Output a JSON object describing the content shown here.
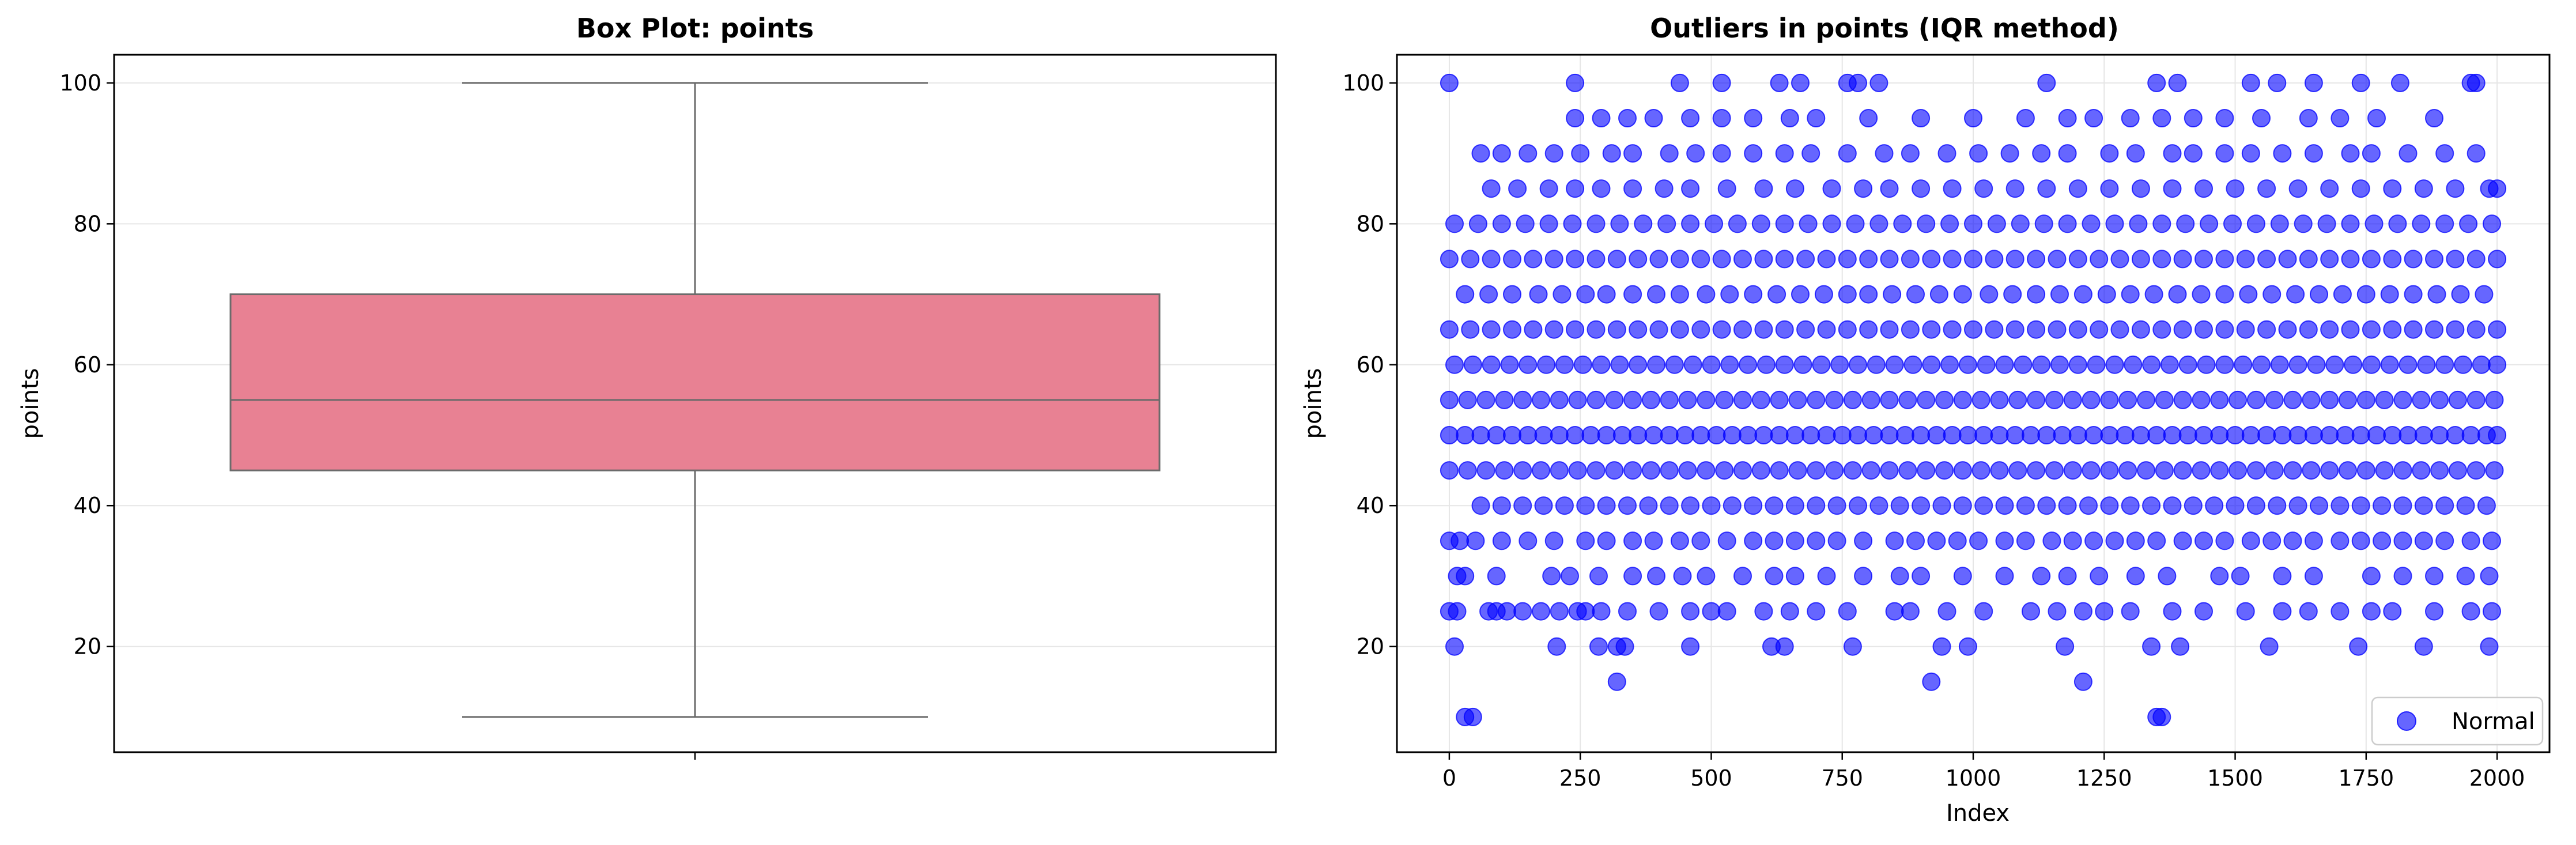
{
  "chart_data": [
    {
      "type": "box",
      "title": "Box Plot: points",
      "ylabel": "points",
      "xlabel": "",
      "ylim": [
        5,
        104
      ],
      "yticks": [
        20,
        40,
        60,
        80,
        100
      ],
      "grid": true,
      "box": {
        "min": 10,
        "q1": 45,
        "median": 55,
        "q3": 70,
        "max": 100
      },
      "colors": {
        "box_fill": "#e88193",
        "line": "#6b6b6b"
      }
    },
    {
      "type": "scatter",
      "title": "Outliers in points (IQR method)",
      "xlabel": "Index",
      "ylabel": "points",
      "xlim": [
        -100,
        2100
      ],
      "ylim": [
        5,
        104
      ],
      "xticks": [
        0,
        250,
        500,
        750,
        1000,
        1250,
        1500,
        1750,
        2000
      ],
      "yticks": [
        20,
        40,
        60,
        80,
        100
      ],
      "grid": true,
      "legend": {
        "placement": "lower-right",
        "entries": [
          "Normal"
        ]
      },
      "series": [
        {
          "name": "Normal",
          "color": "#0000ff",
          "levels": [
            10,
            15,
            20,
            25,
            30,
            35,
            40,
            45,
            50,
            55,
            60,
            65,
            70,
            75,
            80,
            85,
            90,
            95,
            100
          ],
          "points_x": [
            [
              30,
              45,
              1350,
              1360
            ],
            [
              320,
              920,
              1210
            ],
            [
              10,
              205,
              285,
              320,
              335,
              460,
              615,
              640,
              770,
              940,
              990,
              1175,
              1340,
              1395,
              1565,
              1735,
              1860,
              1985
            ],
            [
              0,
              15,
              75,
              90,
              110,
              140,
              175,
              210,
              245,
              260,
              290,
              340,
              400,
              460,
              500,
              530,
              600,
              650,
              700,
              760,
              850,
              880,
              950,
              1020,
              1110,
              1160,
              1210,
              1250,
              1300,
              1380,
              1440,
              1520,
              1590,
              1640,
              1700,
              1760,
              1800,
              1880,
              1950,
              1990
            ],
            [
              15,
              30,
              90,
              195,
              230,
              285,
              350,
              395,
              445,
              490,
              560,
              620,
              660,
              720,
              790,
              860,
              900,
              980,
              1060,
              1130,
              1180,
              1240,
              1310,
              1370,
              1470,
              1510,
              1590,
              1650,
              1760,
              1820,
              1880,
              1940,
              1985
            ],
            [
              0,
              20,
              50,
              100,
              150,
              200,
              260,
              300,
              350,
              390,
              440,
              480,
              530,
              580,
              620,
              660,
              700,
              740,
              790,
              850,
              890,
              930,
              970,
              1010,
              1060,
              1100,
              1150,
              1190,
              1230,
              1270,
              1310,
              1350,
              1400,
              1440,
              1480,
              1530,
              1570,
              1610,
              1650,
              1700,
              1740,
              1780,
              1820,
              1860,
              1900,
              1950,
              1990
            ],
            [
              60,
              100,
              140,
              180,
              220,
              260,
              300,
              340,
              380,
              420,
              460,
              500,
              540,
              580,
              620,
              660,
              700,
              740,
              780,
              820,
              860,
              900,
              940,
              980,
              1020,
              1060,
              1100,
              1140,
              1180,
              1220,
              1260,
              1300,
              1340,
              1380,
              1420,
              1460,
              1500,
              1540,
              1580,
              1620,
              1660,
              1700,
              1740,
              1780,
              1820,
              1860,
              1900,
              1940,
              1980
            ],
            [
              0,
              35,
              70,
              105,
              140,
              175,
              210,
              245,
              280,
              315,
              350,
              385,
              420,
              455,
              490,
              525,
              560,
              595,
              630,
              665,
              700,
              735,
              770,
              805,
              840,
              875,
              910,
              945,
              980,
              1015,
              1050,
              1085,
              1120,
              1155,
              1190,
              1225,
              1260,
              1295,
              1330,
              1365,
              1400,
              1435,
              1470,
              1505,
              1540,
              1575,
              1610,
              1645,
              1680,
              1715,
              1750,
              1785,
              1820,
              1855,
              1890,
              1925,
              1960,
              1995
            ],
            [
              0,
              30,
              60,
              90,
              120,
              150,
              180,
              210,
              240,
              270,
              300,
              330,
              360,
              390,
              420,
              450,
              480,
              510,
              540,
              570,
              600,
              630,
              660,
              690,
              720,
              750,
              780,
              810,
              840,
              870,
              900,
              930,
              960,
              990,
              1020,
              1050,
              1080,
              1110,
              1140,
              1170,
              1200,
              1230,
              1260,
              1290,
              1320,
              1350,
              1380,
              1410,
              1440,
              1470,
              1500,
              1530,
              1560,
              1590,
              1620,
              1650,
              1680,
              1710,
              1740,
              1770,
              1800,
              1830,
              1860,
              1890,
              1920,
              1950,
              1980,
              2000
            ],
            [
              0,
              35,
              70,
              105,
              140,
              175,
              210,
              245,
              280,
              315,
              350,
              385,
              420,
              455,
              490,
              525,
              560,
              595,
              630,
              665,
              700,
              735,
              770,
              805,
              840,
              875,
              910,
              945,
              980,
              1015,
              1050,
              1085,
              1120,
              1155,
              1190,
              1225,
              1260,
              1295,
              1330,
              1365,
              1400,
              1435,
              1470,
              1505,
              1540,
              1575,
              1610,
              1645,
              1680,
              1715,
              1750,
              1785,
              1820,
              1855,
              1890,
              1925,
              1960,
              1995
            ],
            [
              10,
              45,
              80,
              115,
              150,
              185,
              220,
              255,
              290,
              325,
              360,
              395,
              430,
              465,
              500,
              535,
              570,
              605,
              640,
              675,
              710,
              745,
              780,
              815,
              850,
              885,
              920,
              955,
              990,
              1025,
              1060,
              1095,
              1130,
              1165,
              1200,
              1235,
              1270,
              1305,
              1340,
              1375,
              1410,
              1445,
              1480,
              1515,
              1550,
              1585,
              1620,
              1655,
              1690,
              1725,
              1760,
              1795,
              1830,
              1865,
              1900,
              1935,
              1970,
              2000
            ],
            [
              0,
              40,
              80,
              120,
              160,
              200,
              240,
              280,
              320,
              360,
              400,
              440,
              480,
              520,
              560,
              600,
              640,
              680,
              720,
              760,
              800,
              840,
              880,
              920,
              960,
              1000,
              1040,
              1080,
              1120,
              1160,
              1200,
              1240,
              1280,
              1320,
              1360,
              1400,
              1440,
              1480,
              1520,
              1560,
              1600,
              1640,
              1680,
              1720,
              1760,
              1800,
              1840,
              1880,
              1920,
              1960,
              2000
            ],
            [
              30,
              75,
              120,
              170,
              215,
              260,
              300,
              350,
              395,
              440,
              490,
              535,
              580,
              625,
              670,
              715,
              760,
              800,
              845,
              890,
              935,
              980,
              1030,
              1075,
              1120,
              1165,
              1210,
              1255,
              1300,
              1345,
              1390,
              1435,
              1480,
              1525,
              1570,
              1615,
              1660,
              1705,
              1750,
              1795,
              1840,
              1885,
              1930,
              1975
            ],
            [
              0,
              40,
              80,
              120,
              160,
              200,
              240,
              280,
              320,
              360,
              400,
              440,
              480,
              520,
              560,
              600,
              640,
              680,
              720,
              760,
              800,
              840,
              880,
              920,
              960,
              1000,
              1040,
              1080,
              1120,
              1160,
              1200,
              1240,
              1280,
              1320,
              1360,
              1400,
              1440,
              1480,
              1520,
              1560,
              1600,
              1640,
              1680,
              1720,
              1760,
              1800,
              1840,
              1880,
              1920,
              1960,
              2000
            ],
            [
              10,
              55,
              100,
              145,
              190,
              235,
              280,
              325,
              370,
              415,
              460,
              505,
              550,
              595,
              640,
              685,
              730,
              775,
              820,
              865,
              910,
              955,
              1000,
              1045,
              1090,
              1135,
              1180,
              1225,
              1270,
              1315,
              1360,
              1405,
              1450,
              1495,
              1540,
              1585,
              1630,
              1675,
              1720,
              1765,
              1810,
              1855,
              1900,
              1945,
              1990
            ],
            [
              80,
              130,
              190,
              240,
              290,
              350,
              410,
              460,
              530,
              600,
              660,
              730,
              790,
              840,
              900,
              960,
              1020,
              1080,
              1140,
              1200,
              1260,
              1320,
              1380,
              1440,
              1500,
              1560,
              1620,
              1680,
              1740,
              1800,
              1860,
              1920,
              1985,
              2000
            ],
            [
              60,
              100,
              150,
              200,
              250,
              310,
              350,
              420,
              470,
              520,
              580,
              640,
              690,
              760,
              830,
              880,
              950,
              1010,
              1070,
              1130,
              1180,
              1260,
              1310,
              1380,
              1420,
              1480,
              1530,
              1590,
              1650,
              1720,
              1760,
              1830,
              1900,
              1960
            ],
            [
              240,
              290,
              340,
              390,
              460,
              520,
              580,
              650,
              700,
              800,
              900,
              1000,
              1100,
              1180,
              1230,
              1300,
              1360,
              1420,
              1480,
              1550,
              1640,
              1700,
              1770,
              1880
            ],
            [
              0,
              240,
              440,
              520,
              630,
              670,
              760,
              780,
              820,
              1140,
              1350,
              1390,
              1530,
              1580,
              1650,
              1740,
              1815,
              1950,
              1960
            ]
          ]
        }
      ]
    }
  ]
}
